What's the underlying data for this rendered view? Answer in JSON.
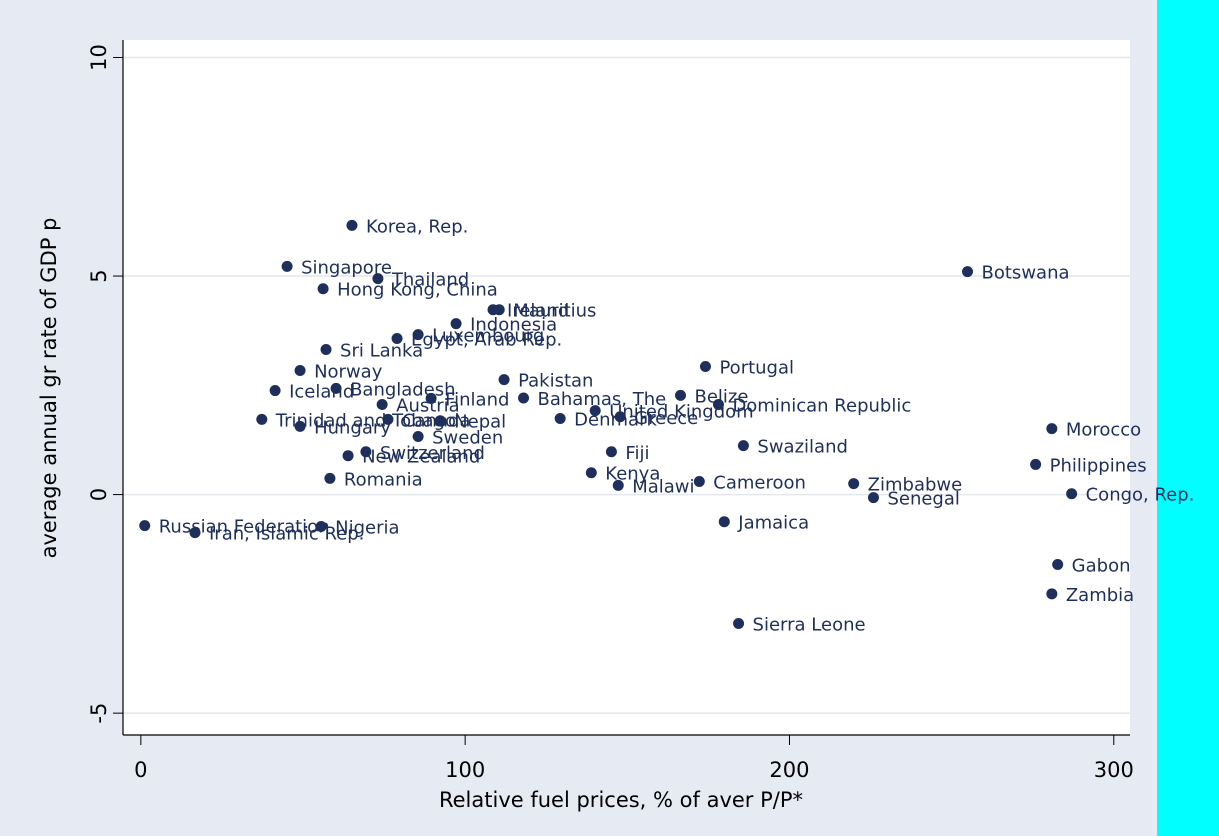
{
  "chart_data": {
    "type": "scatter",
    "x_label": "Relative fuel prices, % of aver P/P*",
    "y_label": "average annual gr rate of GDP p",
    "xlim": [
      -5.5,
      305
    ],
    "ylim": [
      -5.5,
      10.4
    ],
    "xticks": [
      0,
      100,
      200,
      300
    ],
    "yticks": [
      -5,
      0,
      5,
      10
    ],
    "grid": true,
    "color": "#1f2f5c",
    "labels": [
      "Korea, Rep.",
      "Singapore",
      "Thailand",
      "Hong Kong, China",
      "Botswana",
      "Ireland",
      "Mauritius",
      "Indonesia",
      "Luxembourg",
      "Egypt, Arab Rep.",
      "Sri Lanka",
      "Portugal",
      "Norway",
      "Pakistan",
      "Bangladesh",
      "Iceland",
      "Bahamas, The",
      "Belize",
      "Dominican Republic",
      "United Kingdom",
      "Greece",
      "Denmark",
      "Finland",
      "Austria",
      "Canada",
      "Nepal",
      "Trinidad and Tobago",
      "Hungary",
      "Morocco",
      "Sweden",
      "Swaziland",
      "Fiji",
      "Switzerland",
      "New Zealand",
      "Philippines",
      "Kenya",
      "Romania",
      "Cameroon",
      "Zimbabwe",
      "Malawi",
      "Congo, Rep.",
      "Senegal",
      "Jamaica",
      "Russian Federation",
      "Nigeria",
      "Iran, Islamic Rep.",
      "Gabon",
      "Zambia",
      "Sierra Leone"
    ],
    "x": [
      65.1,
      45.1,
      73.1,
      56.2,
      254.9,
      108.6,
      110.5,
      97.2,
      85.5,
      79,
      57.1,
      174.1,
      49.1,
      112,
      60.2,
      41.4,
      118,
      166.4,
      178.1,
      140.1,
      147.8,
      129.3,
      89.5,
      74.4,
      76.2,
      92.3,
      37.3,
      49.1,
      280.9,
      85.5,
      185.8,
      145.1,
      69.4,
      63.9,
      275.9,
      138.9,
      58.3,
      172.2,
      219.8,
      147.2,
      287,
      225.9,
      179.9,
      1.2,
      55.6,
      16.7,
      282.7,
      280.9,
      184.3
    ],
    "values": [
      6.16,
      5.22,
      4.94,
      4.71,
      5.1,
      4.23,
      4.23,
      3.91,
      3.66,
      3.57,
      3.32,
      2.93,
      2.84,
      2.63,
      2.43,
      2.38,
      2.21,
      2.27,
      2.06,
      1.92,
      1.78,
      1.74,
      2.2,
      2.06,
      1.72,
      1.69,
      1.72,
      1.56,
      1.51,
      1.33,
      1.12,
      0.98,
      0.98,
      0.89,
      0.69,
      0.5,
      0.37,
      0.3,
      0.25,
      0.21,
      0.02,
      -0.07,
      -0.62,
      -0.71,
      -0.73,
      -0.87,
      -1.6,
      -2.27,
      -2.95
    ]
  }
}
